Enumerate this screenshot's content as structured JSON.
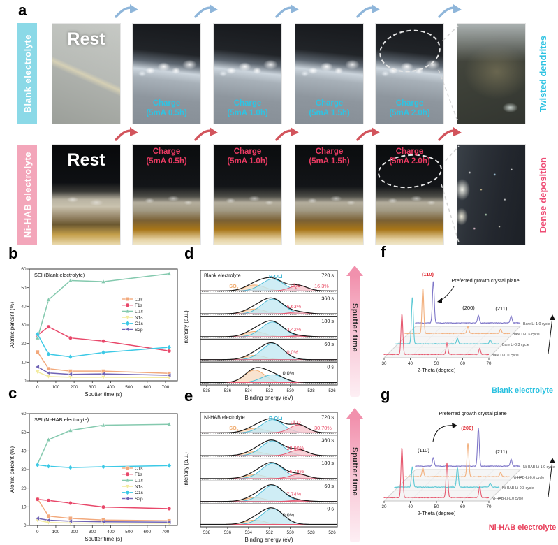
{
  "panel_letters": {
    "a": "a",
    "b": "b",
    "c": "c",
    "d": "d",
    "e": "e",
    "f": "f",
    "g": "g"
  },
  "panel_a": {
    "rows": [
      {
        "id": "blank",
        "side_label": "Blank electrolyte",
        "bar_color": "#8bd9e7",
        "accent": "#2fc3e2",
        "arrow_color": "#8fb6da",
        "right_label": "Twisted dendrites",
        "images": [
          {
            "line1": "Rest"
          },
          {
            "line1": "Charge",
            "line2": "(5mA 0.5h)"
          },
          {
            "line1": "Charge",
            "line2": "(5mA 1.0h)"
          },
          {
            "line1": "Charge",
            "line2": "(5mA 1.5h)"
          },
          {
            "line1": "Charge",
            "line2": "(5mA 2.0h)"
          },
          {}
        ]
      },
      {
        "id": "nihab",
        "side_label": "Ni-HAB electrolyte",
        "bar_color": "#f3a6ba",
        "accent": "#e93a62",
        "arrow_color": "#d2545c",
        "right_label": "Dense deposition",
        "images": [
          {
            "line1": "Rest"
          },
          {
            "line1": "Charge",
            "line2": "(5mA 0.5h)"
          },
          {
            "line1": "Charge",
            "line2": "(5mA 1.0h)"
          },
          {
            "line1": "Charge",
            "line2": "(5mA 1.5h)"
          },
          {
            "line1": "Charge",
            "line2": "(5mA 2.0h)"
          },
          {}
        ]
      }
    ]
  },
  "chart_data": [
    {
      "id": "b",
      "type": "line",
      "title": "SEI (Blank electrolyte)",
      "xlabel": "Sputter time (s)",
      "ylabel": "Atomic percent (%)",
      "xlim": [
        -45,
        765
      ],
      "ylim": [
        0,
        60
      ],
      "xticks": [
        0,
        100,
        200,
        300,
        400,
        500,
        600,
        700
      ],
      "yticks": [
        0,
        10,
        20,
        30,
        40,
        50,
        60
      ],
      "x": [
        0,
        60,
        180,
        360,
        720
      ],
      "series": [
        {
          "name": "C1s",
          "color": "#f2a97c",
          "marker": "square",
          "values": [
            15.5,
            6.5,
            5.2,
            5.2,
            4.0
          ]
        },
        {
          "name": "F1s",
          "color": "#e8486a",
          "marker": "circle",
          "values": [
            24.5,
            29.0,
            23.0,
            21.3,
            16.0
          ]
        },
        {
          "name": "Li1s",
          "color": "#84c9ae",
          "marker": "triangle-up",
          "values": [
            23.0,
            43.5,
            53.8,
            53.2,
            57.5
          ]
        },
        {
          "name": "N1s",
          "color": "#f3eb9e",
          "marker": "triangle-down",
          "values": [
            4.8,
            2.3,
            1.9,
            1.9,
            1.8
          ]
        },
        {
          "name": "O1s",
          "color": "#3cc9e6",
          "marker": "diamond",
          "values": [
            25.0,
            14.3,
            12.9,
            15.2,
            18.0
          ]
        },
        {
          "name": "S2p",
          "color": "#6f63b4",
          "marker": "triangle-left",
          "values": [
            7.5,
            4.2,
            3.5,
            3.7,
            3.0
          ]
        }
      ]
    },
    {
      "id": "c",
      "type": "line",
      "title": "SEI (Ni-HAB electrolyte)",
      "xlabel": "Sputter time (s)",
      "ylabel": "Atomic percent (%)",
      "xlim": [
        -45,
        765
      ],
      "ylim": [
        0,
        60
      ],
      "xticks": [
        0,
        100,
        200,
        300,
        400,
        500,
        600,
        700
      ],
      "yticks": [
        0,
        10,
        20,
        30,
        40,
        50,
        60
      ],
      "x": [
        0,
        60,
        180,
        360,
        720
      ],
      "series": [
        {
          "name": "C1s",
          "color": "#f2a97c",
          "marker": "square",
          "values": [
            14.2,
            5.0,
            3.8,
            2.9,
            2.5
          ]
        },
        {
          "name": "F1s",
          "color": "#e8486a",
          "marker": "circle",
          "values": [
            14.0,
            13.4,
            12.0,
            9.9,
            9.0
          ]
        },
        {
          "name": "Li1s",
          "color": "#84c9ae",
          "marker": "triangle-up",
          "values": [
            33.0,
            46.0,
            51.0,
            53.8,
            54.3
          ]
        },
        {
          "name": "N1s",
          "color": "#f3eb9e",
          "marker": "triangle-down",
          "values": [
            2.8,
            1.6,
            1.3,
            1.2,
            1.2
          ]
        },
        {
          "name": "O1s",
          "color": "#3cc9e6",
          "marker": "diamond",
          "values": [
            32.5,
            31.8,
            31.1,
            31.5,
            32.1
          ]
        },
        {
          "name": "S2p",
          "color": "#6f63b4",
          "marker": "triangle-left",
          "values": [
            3.8,
            2.8,
            2.3,
            2.0,
            1.8
          ]
        }
      ]
    },
    {
      "id": "d",
      "type": "xps",
      "title": "Blank electrolyte",
      "xlabel": "Binding energy (eV)",
      "ylabel": "Intensity (a.u.)",
      "xticks": [
        538,
        536,
        534,
        532,
        530,
        528,
        526
      ],
      "xrange": [
        538.6,
        525.5
      ],
      "arrow_label": "Sputter time",
      "species": [
        {
          "label": "SOx",
          "text": "SO",
          "sub": "x",
          "suffix": "",
          "color": "#f0a868",
          "fill": "#f7dcc3",
          "center": 533.4,
          "sigma": 0.95
        },
        {
          "label": "R-OLi",
          "text": "R-OLi",
          "sub": "",
          "suffix": "",
          "color": "#45b9d6",
          "fill": "#c3e9f2",
          "center": 531.7,
          "sigma": 1.05
        },
        {
          "label": "Li2O",
          "text": "Li",
          "sub": "2",
          "suffix": "O",
          "color": "#e4556e",
          "fill": "#f6c5cd",
          "center": 529.2,
          "sigma": 0.85
        }
      ],
      "panels": [
        {
          "time": "720 s",
          "pct": "16.3%",
          "pct_color": "#e84a64",
          "amps": [
            0.34,
            0.68,
            0.3
          ]
        },
        {
          "time": "360 s",
          "pct": "6.63%",
          "pct_color": "#e84a64",
          "amps": [
            0.28,
            0.85,
            0.1
          ]
        },
        {
          "time": "180 s",
          "pct": "3.42%",
          "pct_color": "#e84a64",
          "amps": [
            0.3,
            0.85,
            0.05
          ]
        },
        {
          "time": "60 s",
          "pct": "0.0%",
          "pct_color": "#e84a64",
          "amps": [
            0.25,
            0.92,
            0.0
          ]
        },
        {
          "time": "0 s",
          "pct": "0.0%",
          "pct_color": "#1a1a1a",
          "amps": [
            0.72,
            0.45,
            0.0
          ]
        }
      ]
    },
    {
      "id": "e",
      "type": "xps",
      "title": "Ni-HAB electrolyte",
      "xlabel": "Binding energy (eV)",
      "ylabel": "Intensity (a.u.)",
      "xticks": [
        538,
        536,
        534,
        532,
        530,
        528,
        526
      ],
      "xrange": [
        538.6,
        525.5
      ],
      "arrow_label": "Sputter time",
      "species": [
        {
          "label": "SOx",
          "text": "SO",
          "sub": "x",
          "suffix": "",
          "color": "#f0a868",
          "fill": "#f7dcc3",
          "center": 533.4,
          "sigma": 0.95
        },
        {
          "label": "R-OLi",
          "text": "R-OLi",
          "sub": "",
          "suffix": "",
          "color": "#45b9d6",
          "fill": "#c3e9f2",
          "center": 531.7,
          "sigma": 1.05
        },
        {
          "label": "Li2O",
          "text": "Li",
          "sub": "2",
          "suffix": "O",
          "color": "#e4556e",
          "fill": "#f6c5cd",
          "center": 529.2,
          "sigma": 0.85
        }
      ],
      "panels": [
        {
          "time": "720 s",
          "pct": "30.70%",
          "pct_color": "#e84a64",
          "amps": [
            0.26,
            0.75,
            0.45
          ]
        },
        {
          "time": "360 s",
          "pct": "23.90%",
          "pct_color": "#e84a64",
          "amps": [
            0.22,
            0.85,
            0.33
          ]
        },
        {
          "time": "180 s",
          "pct": "16.78%",
          "pct_color": "#e84a64",
          "amps": [
            0.22,
            0.88,
            0.24
          ]
        },
        {
          "time": "60 s",
          "pct": "7.74%",
          "pct_color": "#e84a64",
          "amps": [
            0.22,
            0.92,
            0.06
          ]
        },
        {
          "time": "0 s",
          "pct": "0.0%",
          "pct_color": "#1a1a1a",
          "amps": [
            0.25,
            0.9,
            0.0
          ]
        }
      ]
    },
    {
      "id": "f",
      "type": "xrd",
      "xlabel": "2-Theta (degree)",
      "xticks": [
        30,
        40,
        50,
        60,
        70
      ],
      "peak_positions": [
        36.8,
        54.0,
        66.5
      ],
      "peak_labels": [
        "(110)",
        "(200)",
        "(211)"
      ],
      "preferred_peak": 0,
      "preferred_label": "Preferred growth crystal plane",
      "preferred_color": "#e03038",
      "traces": [
        {
          "name": "Bare Li-0.0 cycle",
          "color": "#e65a70",
          "heights": [
            58,
            16,
            8
          ]
        },
        {
          "name": "Bare Li-0.3 cycle",
          "color": "#5bc8d4",
          "heights": [
            68,
            8,
            6
          ]
        },
        {
          "name": "Bare Li-0.6 cycle",
          "color": "#f2b07e",
          "heights": [
            65,
            10,
            6
          ]
        },
        {
          "name": "Bare Li-1.0 cycle",
          "color": "#7e76c8",
          "heights": [
            60,
            11,
            10
          ]
        }
      ],
      "caption": "Blank electrolyte",
      "caption_color": "#29c1e0"
    },
    {
      "id": "g",
      "type": "xrd",
      "xlabel": "2-Theta (degree)",
      "xticks": [
        30,
        40,
        50,
        60,
        70
      ],
      "peak_positions": [
        36.8,
        54.0,
        66.5
      ],
      "peak_labels": [
        "(110)",
        "(200)",
        "(211)"
      ],
      "preferred_peak": 1,
      "preferred_label": "Preferred growth crystal plane",
      "preferred_color": "#e03038",
      "traces": [
        {
          "name": "Ni-HAB-Li-0.0 cycle",
          "color": "#e65a70",
          "heights": [
            72,
            50,
            15
          ]
        },
        {
          "name": "Ni-HAB-Li-0.3 cycle",
          "color": "#5bc8d4",
          "heights": [
            30,
            28,
            6
          ]
        },
        {
          "name": "Ni-HAB-Li-0.6 cycle",
          "color": "#f2b07e",
          "heights": [
            12,
            48,
            6
          ]
        },
        {
          "name": "Ni-HAB-Li-1.0 cycle",
          "color": "#7e76c8",
          "heights": [
            12,
            55,
            10
          ]
        }
      ],
      "caption": "Ni-HAB electrolyte",
      "caption_color": "#e8415c"
    }
  ]
}
